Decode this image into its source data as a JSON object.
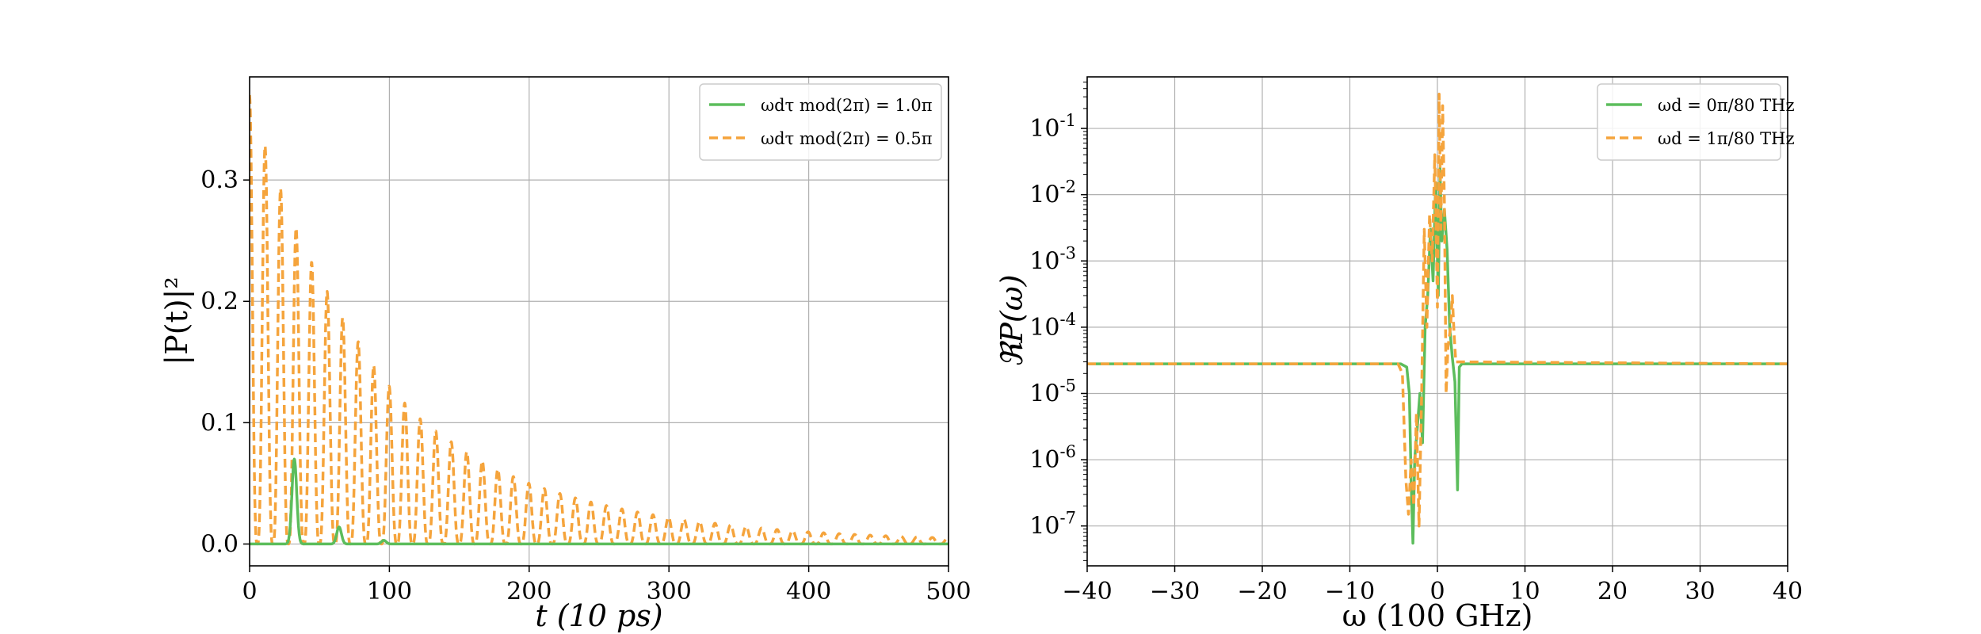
{
  "chart_data": [
    {
      "type": "line",
      "xlabel": "t (10 ps)",
      "ylabel": "|P(t)|²",
      "xlim": [
        0,
        500
      ],
      "ylim": [
        -0.018,
        0.385
      ],
      "xticks": [
        0,
        100,
        200,
        300,
        400,
        500
      ],
      "xtick_labels": [
        "0",
        "100",
        "200",
        "300",
        "400",
        "500"
      ],
      "yticks": [
        0.0,
        0.1,
        0.2,
        0.3
      ],
      "ytick_labels": [
        "0.0",
        "0.1",
        "0.2",
        "0.3"
      ],
      "grid": true,
      "legend_position": "top-right",
      "series": [
        {
          "name": "ωdτ mod(2π) = 1.0π",
          "color": "#5cbd5c",
          "dash": "solid",
          "peaks": [
            {
              "t": 32,
              "value": 0.07
            },
            {
              "t": 64,
              "value": 0.014
            },
            {
              "t": 96,
              "value": 0.003
            }
          ],
          "baseline": 0.0
        },
        {
          "name": "ωdτ mod(2π) = 0.5π",
          "color": "#f5a43c",
          "dash": "dashed",
          "period": 11.1,
          "peaks": [
            {
              "t": 0,
              "value": 0.37
            },
            {
              "t": 12,
              "value": 0.325
            },
            {
              "t": 25,
              "value": 0.285
            },
            {
              "t": 37,
              "value": 0.25
            },
            {
              "t": 50,
              "value": 0.22
            },
            {
              "t": 62,
              "value": 0.195
            },
            {
              "t": 75,
              "value": 0.172
            },
            {
              "t": 87,
              "value": 0.15
            },
            {
              "t": 100,
              "value": 0.13
            },
            {
              "t": 112,
              "value": 0.115
            },
            {
              "t": 125,
              "value": 0.1
            },
            {
              "t": 137,
              "value": 0.09
            },
            {
              "t": 150,
              "value": 0.08
            },
            {
              "t": 200,
              "value": 0.05
            },
            {
              "t": 250,
              "value": 0.033
            },
            {
              "t": 300,
              "value": 0.022
            },
            {
              "t": 350,
              "value": 0.015
            },
            {
              "t": 400,
              "value": 0.01
            },
            {
              "t": 450,
              "value": 0.007
            },
            {
              "t": 500,
              "value": 0.005
            }
          ],
          "decay": [
            {
              "t": 0,
              "value": 0.37
            },
            {
              "t": 500,
              "value": 0.005
            }
          ],
          "minimum": 0.0
        }
      ]
    },
    {
      "type": "line",
      "xlabel": "ω (100 GHz)",
      "ylabel": "ℜP(ω)",
      "xlim": [
        -40,
        40
      ],
      "ylog": true,
      "ylim": [
        2.5e-08,
        0.6
      ],
      "xticks": [
        -40,
        -30,
        -20,
        -10,
        0,
        10,
        20,
        30,
        40
      ],
      "xtick_labels": [
        "−40",
        "−30",
        "−20",
        "−10",
        "0",
        "10",
        "20",
        "30",
        "40"
      ],
      "yticks": [
        1e-07,
        1e-06,
        1e-05,
        0.0001,
        0.001,
        0.01,
        0.1
      ],
      "ytick_labels": [
        {
          "base": "10",
          "exp": "-7"
        },
        {
          "base": "10",
          "exp": "-6"
        },
        {
          "base": "10",
          "exp": "-5"
        },
        {
          "base": "10",
          "exp": "-4"
        },
        {
          "base": "10",
          "exp": "-3"
        },
        {
          "base": "10",
          "exp": "-2"
        },
        {
          "base": "10",
          "exp": "-1"
        }
      ],
      "grid": true,
      "legend_position": "top-right",
      "series": [
        {
          "name": "ωd = 0π/80 THz",
          "color": "#5cbd5c",
          "dash": "solid",
          "plateau": 2.8e-05,
          "points": [
            [
              -40,
              2.8e-05
            ],
            [
              -4.2,
              2.8e-05
            ],
            [
              -3.5,
              2.5e-05
            ],
            [
              -3.2,
              1e-05
            ],
            [
              -3.0,
              5e-07
            ],
            [
              -2.8,
              5.5e-08
            ],
            [
              -2.6,
              1e-06
            ],
            [
              -2.3,
              3e-06
            ],
            [
              -2.0,
              1e-05
            ],
            [
              -1.7,
              1.8e-06
            ],
            [
              -1.4,
              0.0001
            ],
            [
              -1.1,
              0.0003
            ],
            [
              -0.8,
              0.003
            ],
            [
              -0.5,
              0.0005
            ],
            [
              -0.2,
              0.015
            ],
            [
              0.1,
              0.0003
            ],
            [
              0.3,
              0.025
            ],
            [
              0.5,
              0.002
            ],
            [
              0.8,
              0.006
            ],
            [
              1.1,
              0.0015
            ],
            [
              1.4,
              0.0001
            ],
            [
              1.7,
              3.5e-05
            ],
            [
              2.0,
              1.5e-05
            ],
            [
              2.3,
              3.5e-07
            ],
            [
              2.5,
              2.5e-05
            ],
            [
              2.8,
              2.8e-05
            ],
            [
              40,
              2.8e-05
            ]
          ]
        },
        {
          "name": "ωd = 1π/80 THz",
          "color": "#f5a43c",
          "dash": "dashed",
          "plateau": 2.8e-05,
          "points": [
            [
              -40,
              2.8e-05
            ],
            [
              -4.5,
              2.8e-05
            ],
            [
              -4.0,
              2e-05
            ],
            [
              -3.6,
              5e-07
            ],
            [
              -3.3,
              1.5e-07
            ],
            [
              -3.0,
              1e-06
            ],
            [
              -2.7,
              2e-07
            ],
            [
              -2.4,
              5e-06
            ],
            [
              -2.1,
              1e-07
            ],
            [
              -1.8,
              1e-05
            ],
            [
              -1.5,
              0.003
            ],
            [
              -1.2,
              0.0001
            ],
            [
              -0.9,
              0.005
            ],
            [
              -0.6,
              0.001
            ],
            [
              -0.3,
              0.04
            ],
            [
              0.0,
              0.0002
            ],
            [
              0.2,
              0.33
            ],
            [
              0.4,
              0.003
            ],
            [
              0.6,
              0.22
            ],
            [
              0.8,
              0.008
            ],
            [
              1.0,
              1e-05
            ],
            [
              1.2,
              5e-05
            ],
            [
              1.5,
              0.0001
            ],
            [
              1.7,
              0.0003
            ],
            [
              1.9,
              8e-05
            ],
            [
              2.1,
              3e-05
            ],
            [
              40,
              2.8e-05
            ]
          ]
        }
      ]
    }
  ]
}
